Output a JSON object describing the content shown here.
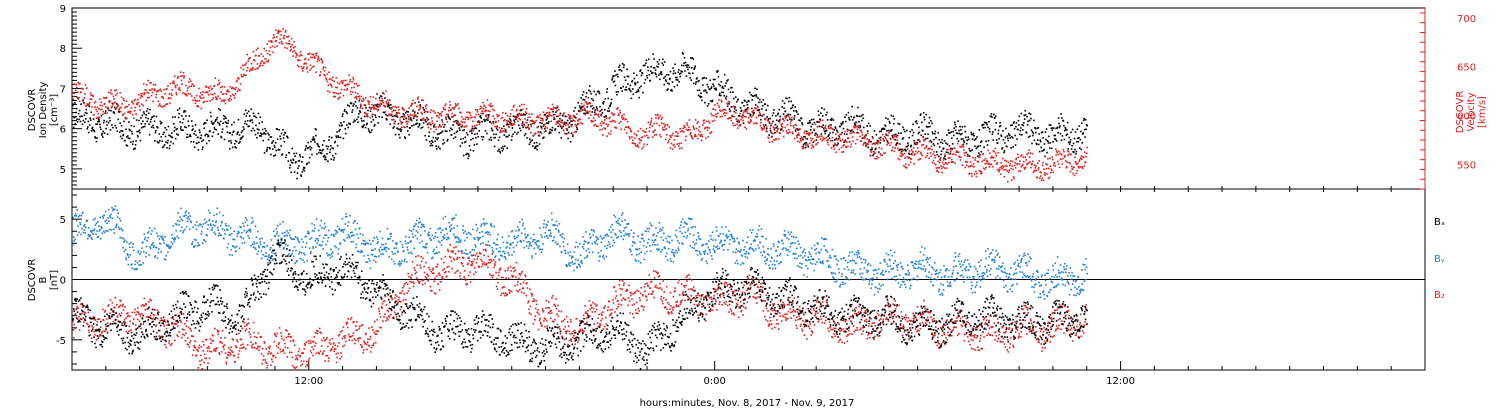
{
  "colors": {
    "black": "#000000",
    "red": "#e0201e",
    "blue": "#1e7fd8"
  },
  "xaxis": {
    "label": "hours:minutes, Nov.  8, 2017 - Nov.  9, 2017",
    "range_hours": [
      5,
      45
    ],
    "ticks": [
      {
        "hour": 12,
        "label": "12:00"
      },
      {
        "hour": 24,
        "label": "0:00"
      },
      {
        "hour": 36,
        "label": "12:00"
      }
    ]
  },
  "chart_data": [
    {
      "type": "scatter",
      "ylabel_left": [
        "DSCOVR",
        "Ion Density",
        "[cm⁻³]"
      ],
      "ylabel_right": [
        "DSCOVR",
        "Velocity",
        "[km/s]"
      ],
      "ylim": [
        4.5,
        9.0
      ],
      "yticks": [
        "9",
        "8",
        "7",
        "6",
        "5"
      ],
      "ylim_right": [
        525,
        710
      ],
      "yticks_right": [
        "700",
        "650",
        "600",
        "550"
      ],
      "series": [
        {
          "name": "Ion Density",
          "axis": "left",
          "color": "black",
          "x": [
            5,
            7,
            9,
            10.5,
            11.5,
            12.5,
            13.5,
            15,
            16.5,
            18,
            19.5,
            21,
            22,
            23,
            24,
            25,
            26,
            27,
            28,
            29,
            30,
            31,
            32,
            33,
            34,
            35
          ],
          "y": [
            6.3,
            6.0,
            6.0,
            6.1,
            5.2,
            5.6,
            6.5,
            6.2,
            5.8,
            6.0,
            6.1,
            7.0,
            7.4,
            7.5,
            7.0,
            6.5,
            6.3,
            6.0,
            6.1,
            5.8,
            5.9,
            5.7,
            5.8,
            6.0,
            5.8,
            6.0
          ]
        },
        {
          "name": "Velocity",
          "axis": "right",
          "color": "red",
          "x": [
            5,
            6.5,
            8,
            9.5,
            11,
            11.5,
            12.5,
            13.5,
            14.5,
            16,
            17.5,
            19,
            20.5,
            22,
            22.5,
            23,
            24,
            24.5,
            25.5,
            27,
            28.5,
            29.5,
            30.5,
            31.5,
            32.5,
            34,
            35
          ],
          "y": [
            620,
            610,
            630,
            620,
            680,
            670,
            640,
            620,
            605,
            600,
            600,
            595,
            600,
            580,
            590,
            575,
            600,
            605,
            590,
            580,
            575,
            565,
            560,
            555,
            550,
            550,
            560
          ]
        }
      ]
    },
    {
      "type": "scatter",
      "ylabel_left": [
        "DSCOVR",
        "B",
        "[nT]"
      ],
      "ylim": [
        -7.5,
        7.5
      ],
      "yticks": [
        "5",
        "0",
        "-5"
      ],
      "legend": [
        "Bₓ",
        "Bᵧ",
        "B₂"
      ],
      "series": [
        {
          "name": "Bₓ",
          "color": "black",
          "x": [
            5,
            6,
            7,
            8,
            9,
            10,
            11,
            12,
            13,
            14,
            15,
            16,
            17,
            18,
            19,
            20,
            21,
            22,
            23,
            24,
            25,
            26,
            27,
            28,
            29,
            30,
            31,
            32,
            33,
            34,
            35
          ],
          "y": [
            -3,
            -4,
            -4.5,
            -3,
            -2,
            -3,
            2,
            0,
            1,
            -1,
            -3,
            -4.5,
            -4,
            -5,
            -5.5,
            -5,
            -4,
            -6,
            -3,
            -1,
            -0.5,
            -1.5,
            -2.5,
            -3,
            -3,
            -4,
            -3.5,
            -3,
            -3.5,
            -3.5,
            -3
          ]
        },
        {
          "name": "Bᵧ",
          "color": "blue",
          "x": [
            5,
            6,
            7,
            8,
            9,
            10,
            11,
            12,
            13,
            14,
            15,
            16,
            17,
            18,
            19,
            20,
            21,
            22,
            23,
            24,
            25,
            26,
            27,
            28,
            29,
            30,
            31,
            32,
            33,
            34,
            35
          ],
          "y": [
            4,
            5,
            2,
            4,
            4.5,
            3.5,
            3,
            3,
            4,
            2.5,
            3,
            4,
            3.5,
            3,
            4,
            2,
            4,
            3,
            3.5,
            3,
            3,
            2.5,
            2,
            1,
            0.5,
            1,
            0.5,
            1,
            0.5,
            0,
            0.5
          ]
        },
        {
          "name": "B₂",
          "color": "red",
          "x": [
            5,
            6,
            7,
            8,
            9,
            10,
            11,
            12,
            13,
            14,
            15,
            16,
            17,
            18,
            19,
            20,
            21,
            22,
            23,
            24,
            25,
            26,
            27,
            28,
            29,
            30,
            31,
            32,
            33,
            34,
            35
          ],
          "y": [
            -4,
            -3,
            -3,
            -4,
            -6,
            -5,
            -5.5,
            -6,
            -5,
            -4,
            0,
            1,
            1.5,
            0,
            -3,
            -4,
            -2,
            -1,
            -1,
            -2,
            -1,
            -3,
            -3,
            -4,
            -3,
            -3.5,
            -4,
            -4.5,
            -4,
            -4,
            -3
          ]
        }
      ]
    }
  ]
}
